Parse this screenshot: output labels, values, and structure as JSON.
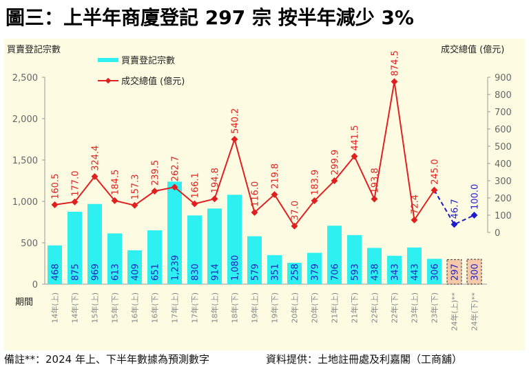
{
  "title": "圖三：上半年商廈登記 297 宗  按半年減少 3%",
  "footer": {
    "note": "備註**：2024 年上、下半年數據為預測數字",
    "source": "資料提供：土地註冊處及利嘉閣（工商舖）"
  },
  "chart_data": {
    "type": "bar+line",
    "y_left_label": "買賣登記宗數",
    "y_right_label": "成交總值 (億元)",
    "x_axis_label": "期間",
    "ylim_left": [
      0,
      2500
    ],
    "yticks_left": [
      "0",
      "500",
      "1,000",
      "1,500",
      "2,000",
      "2,500"
    ],
    "ylim_right": [
      0,
      900
    ],
    "yticks_right": [
      "0",
      "100",
      "200",
      "300",
      "400",
      "500",
      "600",
      "700",
      "800",
      "900"
    ],
    "legend": {
      "placement": "top-left",
      "bar": "買賣登記宗數",
      "line": "成交總值 (億元)"
    },
    "categories": [
      "14年(上)",
      "14年(下)",
      "15年(上)",
      "15年(下)",
      "16年(上)",
      "16年(下)",
      "17年(上)",
      "17年(下)",
      "18年(上)",
      "18年(下)",
      "19年(上)",
      "19年(下)",
      "20年(上)",
      "20年(下)",
      "21年(上)",
      "21年(下)",
      "22年(上)",
      "22年(下)",
      "23年(上)",
      "23年(下)",
      "24年(上)**",
      "24年(下)**"
    ],
    "series": [
      {
        "name": "買賣登記宗數",
        "type": "bar",
        "values": [
          468,
          875,
          969,
          613,
          409,
          651,
          1239,
          830,
          914,
          1080,
          579,
          351,
          258,
          379,
          706,
          593,
          438,
          343,
          443,
          306,
          297,
          300
        ],
        "labels": [
          "468",
          "875",
          "969",
          "613",
          "409",
          "651",
          "1,239",
          "830",
          "914",
          "1,080",
          "579",
          "351",
          "258",
          "379",
          "706",
          "593",
          "438",
          "343",
          "443",
          "306",
          "297",
          "300"
        ],
        "forecast_from_index": 20
      },
      {
        "name": "成交總值 (億元)",
        "type": "line",
        "axis": "right",
        "values": [
          160.5,
          177.0,
          324.4,
          184.5,
          157.3,
          239.5,
          262.7,
          166.1,
          194.8,
          540.2,
          116.0,
          219.8,
          37.0,
          183.9,
          299.9,
          441.5,
          193.8,
          874.5,
          72.4,
          245.0,
          46.7,
          100.0
        ],
        "labels": [
          "160.5",
          "177.0",
          "324.4",
          "184.5",
          "157.3",
          "239.5",
          "262.7",
          "166.1",
          "194.8",
          "540.2",
          "116.0",
          "219.8",
          "37.0",
          "183.9",
          "299.9",
          "441.5",
          "193.8",
          "874.5",
          "72.4",
          "245.0",
          "46.7",
          "100.0"
        ],
        "forecast_from_index": 20
      }
    ],
    "colors": {
      "bar": "#2ef0f0",
      "bar_forecast": "#f6c9a8",
      "line": "#e02020",
      "line_forecast": "#1c1ccc",
      "bar_label": "#2020c0",
      "background": "#fdfbe2"
    },
    "grid": false
  }
}
